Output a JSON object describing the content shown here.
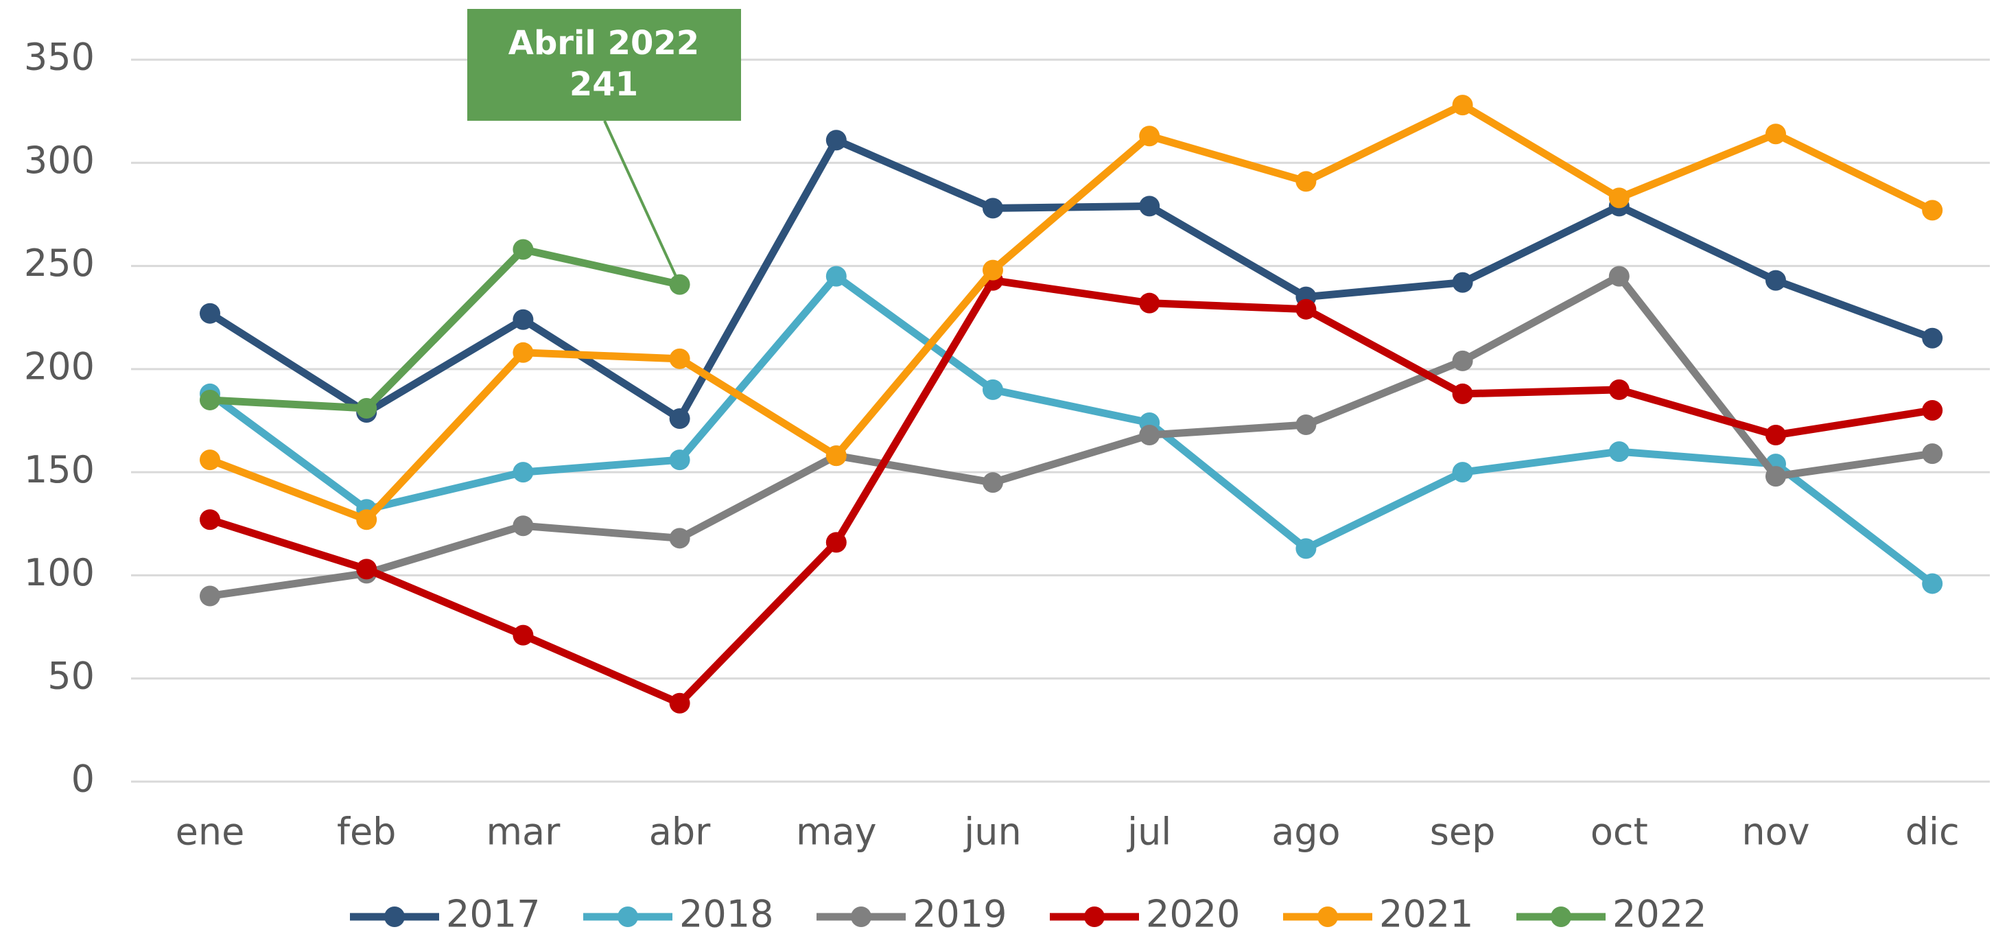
{
  "chart_data": {
    "type": "line",
    "categories": [
      "ene",
      "feb",
      "mar",
      "abr",
      "may",
      "jun",
      "jul",
      "ago",
      "sep",
      "oct",
      "nov",
      "dic"
    ],
    "series": [
      {
        "name": "2017",
        "color": "#2e527a",
        "values": [
          227,
          179,
          224,
          176,
          311,
          278,
          279,
          235,
          242,
          279,
          243,
          215
        ]
      },
      {
        "name": "2018",
        "color": "#4bacc6",
        "values": [
          188,
          132,
          150,
          156,
          245,
          190,
          174,
          113,
          150,
          160,
          154,
          96
        ]
      },
      {
        "name": "2019",
        "color": "#808080",
        "values": [
          90,
          101,
          124,
          118,
          158,
          145,
          168,
          173,
          204,
          245,
          148,
          159
        ]
      },
      {
        "name": "2020",
        "color": "#c00000",
        "values": [
          127,
          103,
          71,
          38,
          116,
          243,
          232,
          229,
          188,
          190,
          168,
          180
        ]
      },
      {
        "name": "2021",
        "color": "#f99b0c",
        "values": [
          156,
          127,
          208,
          205,
          158,
          248,
          313,
          291,
          328,
          283,
          314,
          277
        ]
      },
      {
        "name": "2022",
        "color": "#5f9e53",
        "values": [
          185,
          181,
          258,
          241,
          null,
          null,
          null,
          null,
          null,
          null,
          null,
          null
        ]
      }
    ],
    "annotation": {
      "text": "Abril 2022",
      "value": 241
    },
    "ylim": [
      0,
      350
    ],
    "yticks": [
      0,
      50,
      100,
      150,
      200,
      250,
      300,
      350
    ],
    "grid": true,
    "legend": "bottom"
  }
}
